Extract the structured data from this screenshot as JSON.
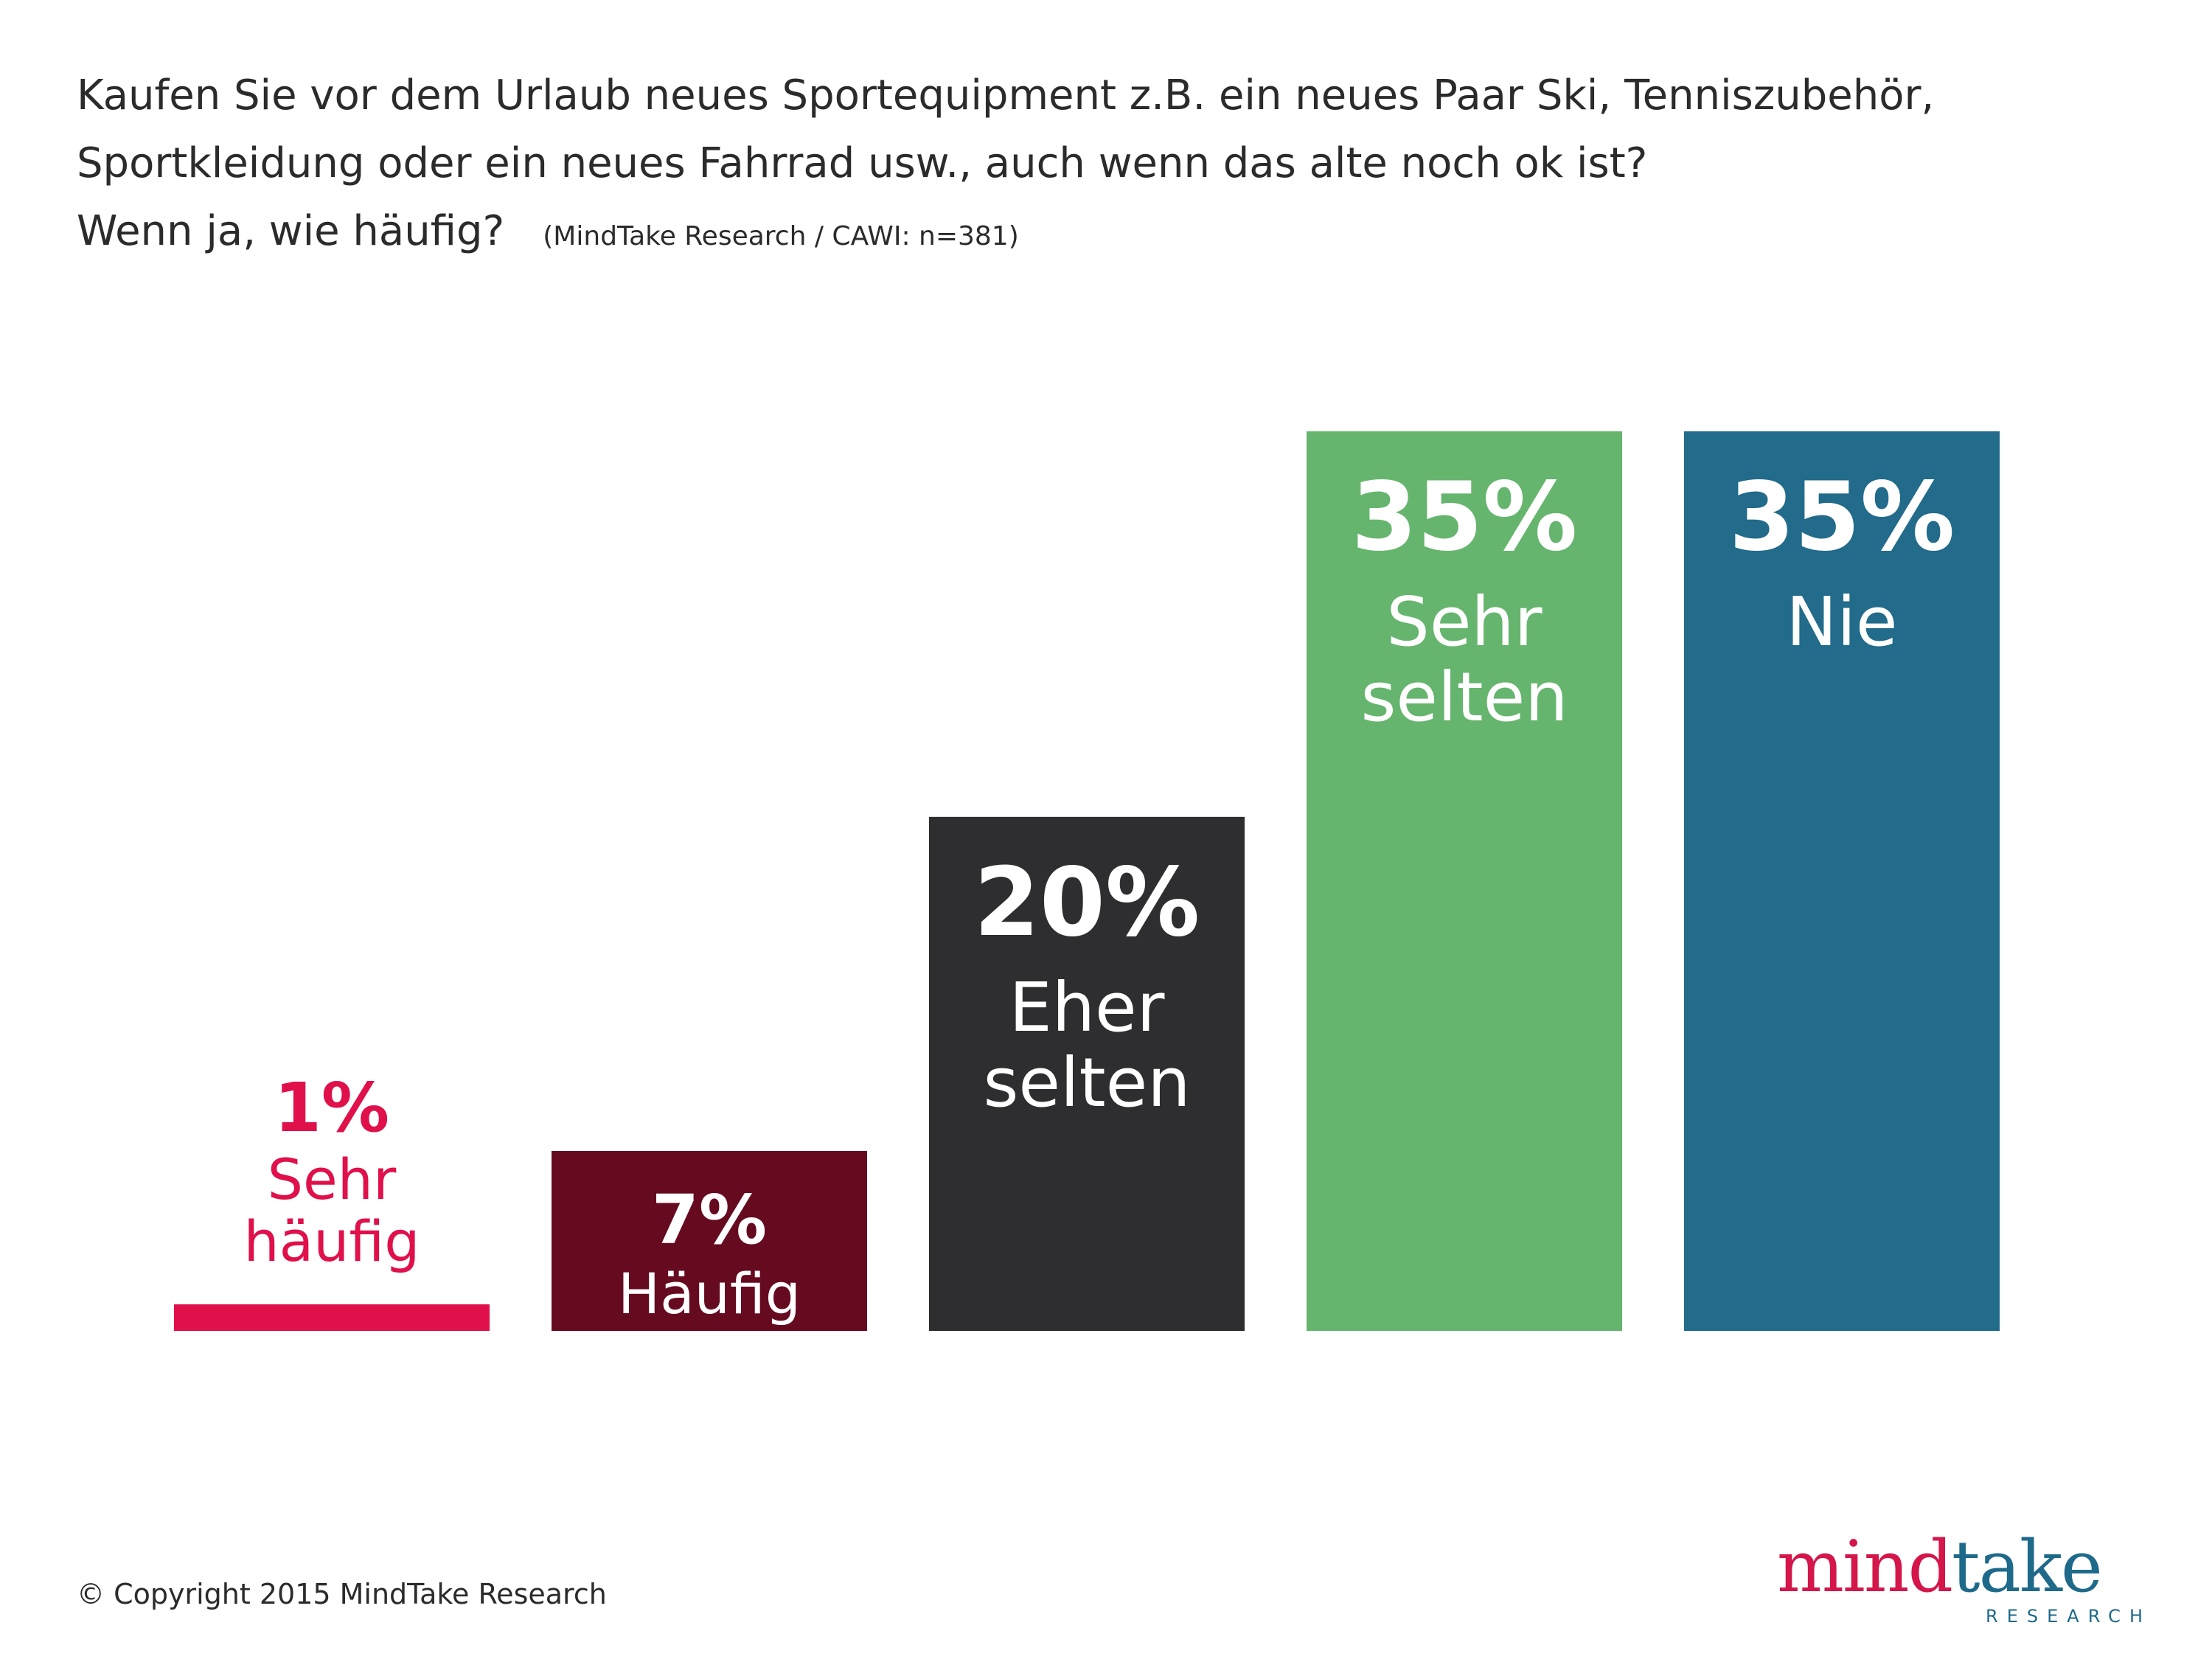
{
  "title": {
    "line1": "Kaufen Sie vor dem Urlaub neues Sportequipment z.B. ein neues Paar Ski, Tenniszubehör,",
    "line2": "Sportkleidung oder ein neues Fahrrad usw., auch wenn das alte noch ok ist?",
    "line3": "Wenn ja, wie häufig?",
    "source": "(MindTake Research / CAWI: n=381)"
  },
  "chart_data": {
    "type": "bar",
    "title": "Kaufen Sie vor dem Urlaub neues Sportequipment z.B. ein neues Paar Ski, Tenniszubehör, Sportkleidung oder ein neues Fahrrad usw., auch wenn das alte noch ok ist? Wenn ja, wie häufig?",
    "xlabel": "",
    "ylabel": "",
    "ylim": [
      0,
      35
    ],
    "unit": "%",
    "categories": [
      "Sehr häufig",
      "Häufig",
      "Eher selten",
      "Sehr selten",
      "Nie"
    ],
    "values": [
      1,
      7,
      20,
      35,
      35
    ],
    "value_labels": [
      "1%",
      "7%",
      "20%",
      "35%",
      "35%"
    ],
    "label_lines": [
      [
        "Sehr",
        "häufig"
      ],
      [
        "Häufig"
      ],
      [
        "Eher",
        "selten"
      ],
      [
        "Sehr",
        "selten"
      ],
      [
        "Nie"
      ]
    ],
    "colors": [
      "#e0104b",
      "#660a20",
      "#2e2e30",
      "#66b56e",
      "#226b8a"
    ],
    "label_colors": [
      "#e0104b",
      "#ffffff",
      "#ffffff",
      "#ffffff",
      "#ffffff"
    ]
  },
  "footer": {
    "copyright": "© Copyright 2015 MindTake Research"
  },
  "logo": {
    "part1": "mind",
    "part2": "take",
    "tagline": "RESEARCH"
  }
}
